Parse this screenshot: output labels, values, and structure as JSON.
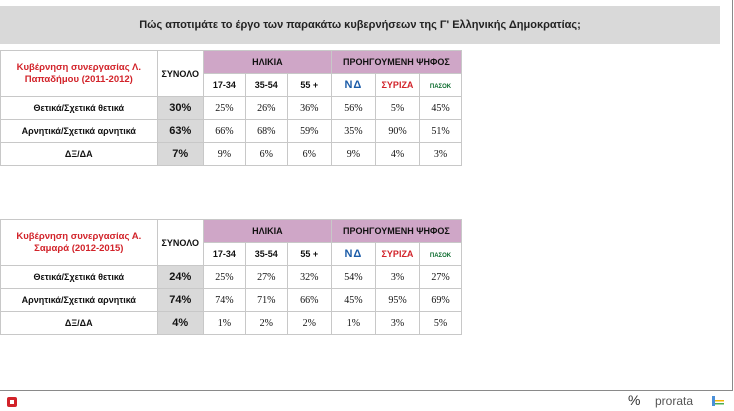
{
  "title": "Πώς αποτιμάτε το έργο των παρακάτω κυβερνήσεων της Γ' Ελληνικής Δημοκρατίας;",
  "headers": {
    "total": "ΣΥΝΟΛΟ",
    "age": "ΗΛΙΚΙΑ",
    "vote": "ΠΡΟΗΓΟΥΜΕΝΗ ΨΗΦΟΣ",
    "age_groups": [
      "17-34",
      "35-54",
      "55 +"
    ],
    "parties": [
      "ΝΔ",
      "ΣΥΡΙΖΑ",
      "ΠΑΣΟΚ"
    ]
  },
  "tables": [
    {
      "government": "Κυβέρνηση συνεργασίας Λ. Παπαδήμου (2011-2012)",
      "rows": [
        {
          "label": "Θετικά/Σχετικά θετικά",
          "total": "30%",
          "ages": [
            "25%",
            "26%",
            "36%"
          ],
          "votes": [
            "56%",
            "5%",
            "45%"
          ]
        },
        {
          "label": "Αρνητικά/Σχετικά αρνητικά",
          "total": "63%",
          "ages": [
            "66%",
            "68%",
            "59%"
          ],
          "votes": [
            "35%",
            "90%",
            "51%"
          ]
        },
        {
          "label": "ΔΞ/ΔΑ",
          "total": "7%",
          "ages": [
            "9%",
            "6%",
            "6%"
          ],
          "votes": [
            "9%",
            "4%",
            "3%"
          ]
        }
      ]
    },
    {
      "government": "Κυβέρνηση συνεργασίας Α. Σαμαρά (2012-2015)",
      "rows": [
        {
          "label": "Θετικά/Σχετικά θετικά",
          "total": "24%",
          "ages": [
            "25%",
            "27%",
            "32%"
          ],
          "votes": [
            "54%",
            "3%",
            "27%"
          ]
        },
        {
          "label": "Αρνητικά/Σχετικά αρνητικά",
          "total": "74%",
          "ages": [
            "74%",
            "71%",
            "66%"
          ],
          "votes": [
            "45%",
            "95%",
            "69%"
          ]
        },
        {
          "label": "ΔΞ/ΔΑ",
          "total": "4%",
          "ages": [
            "1%",
            "2%",
            "2%"
          ],
          "votes": [
            "1%",
            "3%",
            "5%"
          ]
        }
      ]
    }
  ],
  "footer": {
    "brand": "prorata",
    "pct_mark": "%"
  },
  "colors": {
    "header_purple": "#cfa6c7",
    "gov_red": "#d2232a",
    "total_grey": "#d9d9d9"
  }
}
